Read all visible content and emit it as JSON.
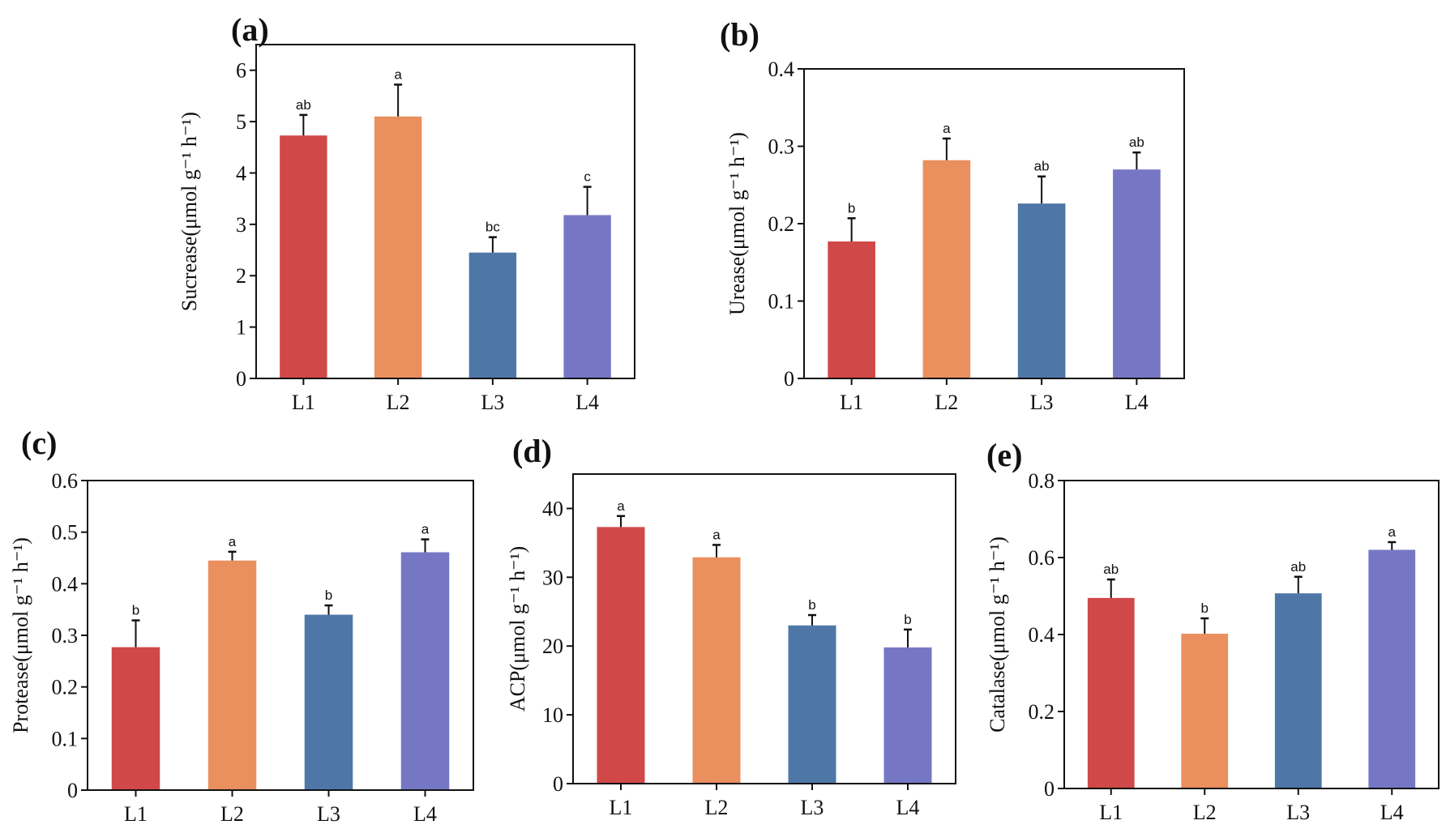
{
  "colors": {
    "L1": "#D04848",
    "L2": "#EA8F5E",
    "L3": "#4E77A8",
    "L4": "#7677C4"
  },
  "chart_data": [
    {
      "id": "a",
      "type": "bar",
      "panel_label": "(a)",
      "title": "",
      "xlabel": "",
      "ylabel": "Sucrease(μmol g⁻¹ h⁻¹)",
      "categories": [
        "L1",
        "L2",
        "L3",
        "L4"
      ],
      "values": [
        4.73,
        5.1,
        2.45,
        3.18
      ],
      "errors": [
        0.4,
        0.62,
        0.3,
        0.55
      ],
      "significance": [
        "ab",
        "a",
        "bc",
        "c"
      ],
      "ylim": [
        0,
        6.5
      ],
      "yticks": [
        0,
        1,
        2,
        3,
        4,
        5,
        6
      ],
      "grid": false
    },
    {
      "id": "b",
      "type": "bar",
      "panel_label": "(b)",
      "title": "",
      "xlabel": "",
      "ylabel": "Urease(μmol g⁻¹ h⁻¹)",
      "categories": [
        "L1",
        "L2",
        "L3",
        "L4"
      ],
      "values": [
        0.177,
        0.282,
        0.226,
        0.27
      ],
      "errors": [
        0.03,
        0.028,
        0.035,
        0.022
      ],
      "significance": [
        "b",
        "a",
        "ab",
        "ab"
      ],
      "ylim": [
        0,
        0.4
      ],
      "yticks": [
        0,
        0.1,
        0.2,
        0.3,
        0.4
      ],
      "grid": false
    },
    {
      "id": "c",
      "type": "bar",
      "panel_label": "(c)",
      "title": "",
      "xlabel": "",
      "ylabel": "Protease(μmol g⁻¹ h⁻¹)",
      "categories": [
        "L1",
        "L2",
        "L3",
        "L4"
      ],
      "values": [
        0.277,
        0.445,
        0.34,
        0.461
      ],
      "errors": [
        0.052,
        0.017,
        0.018,
        0.025
      ],
      "significance": [
        "b",
        "a",
        "b",
        "a"
      ],
      "ylim": [
        0,
        0.6
      ],
      "yticks": [
        0,
        0.1,
        0.2,
        0.3,
        0.4,
        0.5,
        0.6
      ],
      "grid": false
    },
    {
      "id": "d",
      "type": "bar",
      "panel_label": "(d)",
      "title": "",
      "xlabel": "",
      "ylabel": "ACP(μmol g⁻¹ h⁻¹)",
      "categories": [
        "L1",
        "L2",
        "L3",
        "L4"
      ],
      "values": [
        37.3,
        32.9,
        23.0,
        19.8
      ],
      "errors": [
        1.6,
        1.8,
        1.5,
        2.6
      ],
      "significance": [
        "a",
        "a",
        "b",
        "b"
      ],
      "ylim": [
        0,
        45
      ],
      "yticks": [
        0,
        10,
        20,
        30,
        40
      ],
      "grid": false
    },
    {
      "id": "e",
      "type": "bar",
      "panel_label": "(e)",
      "title": "",
      "xlabel": "",
      "ylabel": "Catalase(μmol g⁻¹ h⁻¹)",
      "categories": [
        "L1",
        "L2",
        "L3",
        "L4"
      ],
      "values": [
        0.495,
        0.402,
        0.507,
        0.62
      ],
      "errors": [
        0.048,
        0.04,
        0.043,
        0.02
      ],
      "significance": [
        "ab",
        "b",
        "ab",
        "a"
      ],
      "ylim": [
        0,
        0.8
      ],
      "yticks": [
        0,
        0.2,
        0.4,
        0.6,
        0.8
      ],
      "grid": false
    }
  ]
}
